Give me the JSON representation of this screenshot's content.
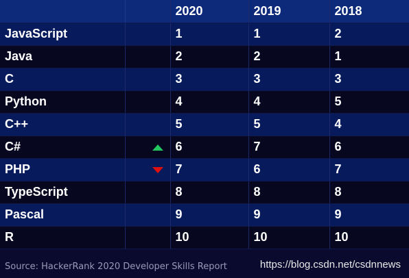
{
  "chart_data": {
    "type": "table",
    "columns": [
      "",
      "",
      "2020",
      "2019",
      "2018"
    ],
    "rows": [
      {
        "language": "JavaScript",
        "trend": "",
        "ranks": [
          "1",
          "1",
          "2"
        ]
      },
      {
        "language": "Java",
        "trend": "",
        "ranks": [
          "2",
          "2",
          "1"
        ]
      },
      {
        "language": "C",
        "trend": "",
        "ranks": [
          "3",
          "3",
          "3"
        ]
      },
      {
        "language": "Python",
        "trend": "",
        "ranks": [
          "4",
          "4",
          "5"
        ]
      },
      {
        "language": "C++",
        "trend": "",
        "ranks": [
          "5",
          "5",
          "4"
        ]
      },
      {
        "language": "C#",
        "trend": "up",
        "ranks": [
          "6",
          "7",
          "6"
        ]
      },
      {
        "language": "PHP",
        "trend": "down",
        "ranks": [
          "7",
          "6",
          "7"
        ]
      },
      {
        "language": "TypeScript",
        "trend": "",
        "ranks": [
          "8",
          "8",
          "8"
        ]
      },
      {
        "language": "Pascal",
        "trend": "",
        "ranks": [
          "9",
          "9",
          "9"
        ]
      },
      {
        "language": "R",
        "trend": "",
        "ranks": [
          "10",
          "10",
          "10"
        ]
      }
    ]
  },
  "footer": {
    "source": "Source: HackerRank 2020 Developer Skills Report",
    "watermark": "https://blog.csdn.net/csdnnews"
  },
  "colors": {
    "header_bg": "#0d2a7a",
    "row_odd_bg": "#061a5c",
    "row_even_bg": "#070720",
    "up_arrow": "#22c55e",
    "down_arrow": "#e01010"
  }
}
